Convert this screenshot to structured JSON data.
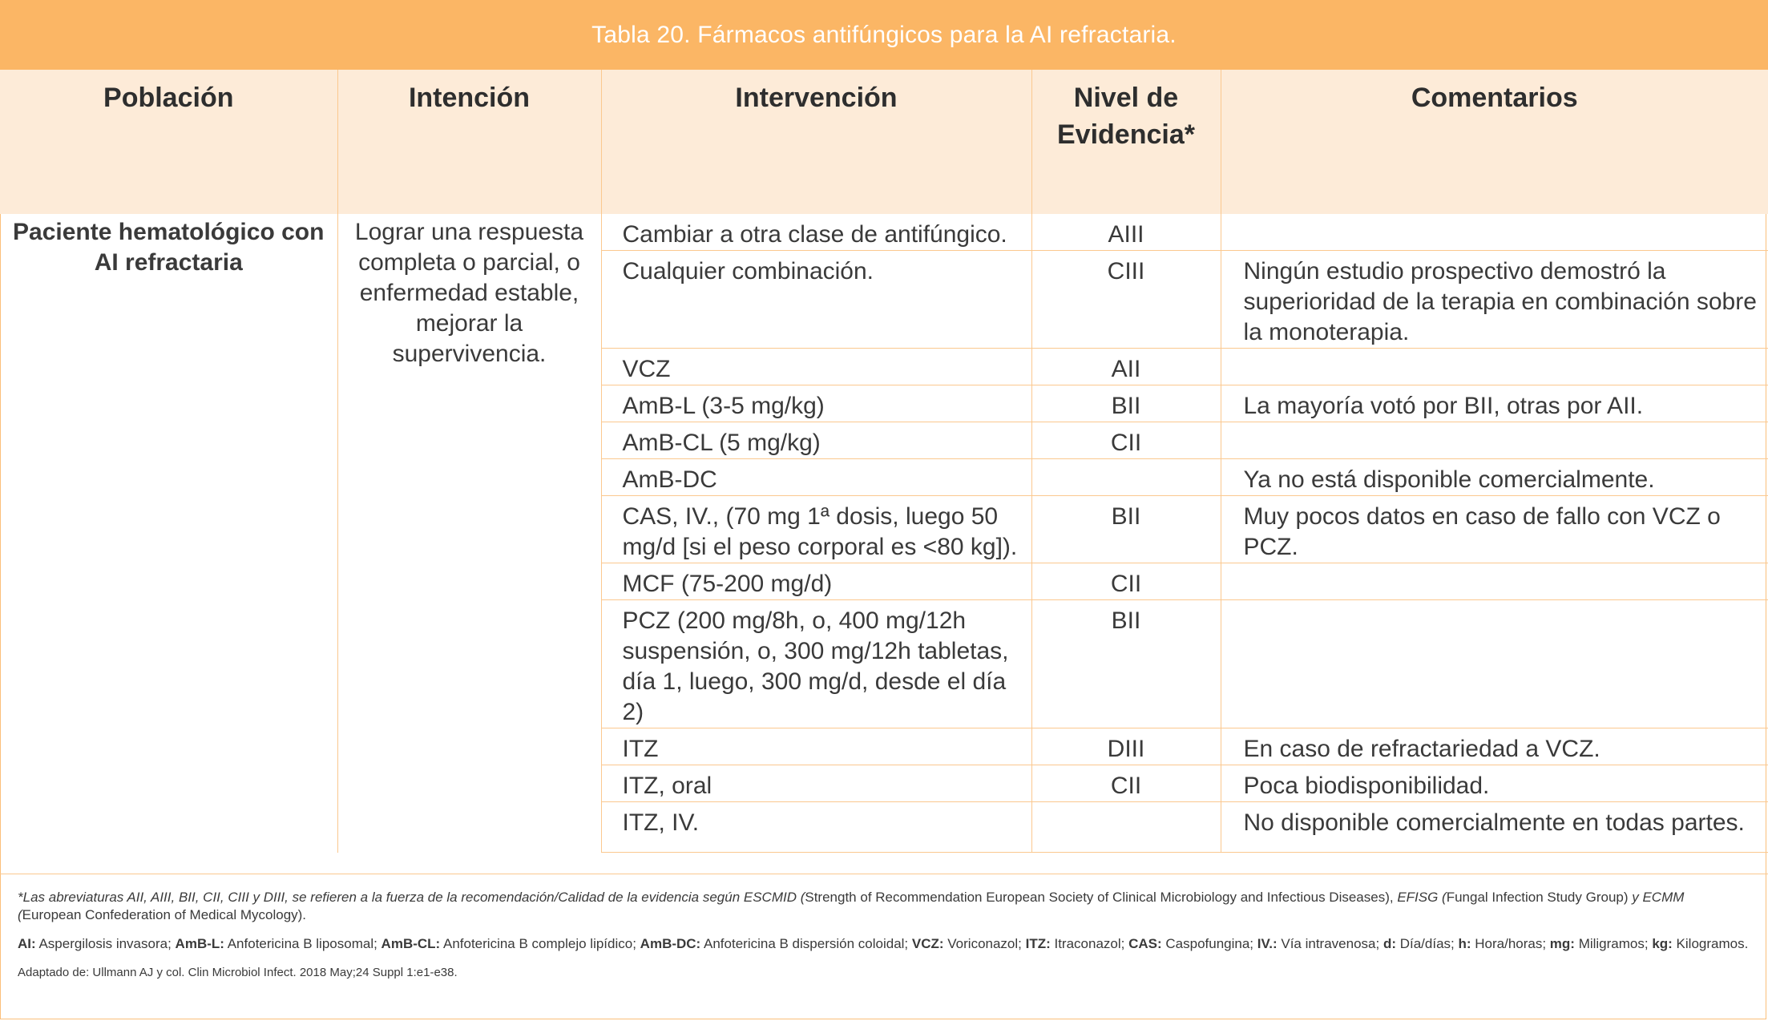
{
  "title": "Tabla 20. Fármacos antifúngicos para la AI refractaria.",
  "headers": {
    "poblacion": "Población",
    "intencion": "Intención",
    "intervencion": "Intervención",
    "nivel_line1": "Nivel de",
    "nivel_line2": "Evidencia*",
    "comentarios": "Comentarios"
  },
  "poblacion": "Paciente hematológico con AI refractaria",
  "intencion": "Lograr una respuesta completa o parcial, o enfermedad estable, mejorar la supervivencia.",
  "rows": [
    {
      "intervencion": "Cambiar a otra clase de antifúngico.",
      "nivel": "AIII",
      "comentario": ""
    },
    {
      "intervencion": "Cualquier combinación.",
      "nivel": "CIII",
      "comentario": "Ningún estudio prospectivo demostró la superioridad de la terapia en combinación sobre la monoterapia."
    },
    {
      "intervencion": "VCZ",
      "nivel": "AII",
      "comentario": ""
    },
    {
      "intervencion": "AmB-L (3-5 mg/kg)",
      "nivel": "BII",
      "comentario": "La mayoría votó por BII, otras por AII."
    },
    {
      "intervencion": "AmB-CL (5 mg/kg)",
      "nivel": "CII",
      "comentario": ""
    },
    {
      "intervencion": "AmB-DC",
      "nivel": "",
      "comentario": "Ya no está disponible comercialmente."
    },
    {
      "intervencion": "CAS, IV., (70 mg 1ª dosis, luego 50 mg/d [si el peso corporal es <80 kg]).",
      "nivel": "BII",
      "comentario": "Muy pocos datos en caso de fallo con VCZ o PCZ."
    },
    {
      "intervencion": "MCF (75-200 mg/d)",
      "nivel": "CII",
      "comentario": ""
    },
    {
      "intervencion": "PCZ (200 mg/8h, o, 400 mg/12h suspensión, o, 300 mg/12h tabletas, día 1, luego, 300 mg/d, desde el día 2)",
      "nivel": "BII",
      "comentario": ""
    },
    {
      "intervencion": "ITZ",
      "nivel": "DIII",
      "comentario": "En caso de refractariedad a VCZ."
    },
    {
      "intervencion": "ITZ, oral",
      "nivel": "CII",
      "comentario": "Poca biodisponibilidad."
    },
    {
      "intervencion": "ITZ, IV.",
      "nivel": "",
      "comentario": "No disponible comercialmente en todas partes."
    }
  ],
  "notes": {
    "note1_italic_a": "*Las abreviaturas AII, AIII, BII, CII, CIII y DIII, se refieren a la fuerza de la recomendación/Calidad de la evidencia según ESCMID (",
    "note1_plain_a": "Strength of Recommendation European Society of Clinical Microbiology and Infectious Diseases),",
    "note1_italic_b": " EFISG (",
    "note1_plain_b": "Fungal Infection Study Group)",
    "note1_italic_c": " y ECMM (",
    "note1_plain_c": "European Confederation of Medical Mycology).",
    "abbreviations": [
      {
        "term": "AI:",
        "def": " Aspergilosis invasora; "
      },
      {
        "term": "AmB-L:",
        "def": " Anfotericina B liposomal; "
      },
      {
        "term": "AmB-CL:",
        "def": " Anfotericina B complejo lipídico; "
      },
      {
        "term": "AmB-DC:",
        "def": " Anfotericina B dispersión coloidal; "
      },
      {
        "term": "VCZ:",
        "def": " Voriconazol; "
      },
      {
        "term": "ITZ:",
        "def": " Itraconazol; "
      },
      {
        "term": "CAS:",
        "def": " Caspofungina; "
      },
      {
        "term": "IV.:",
        "def": " Vía intravenosa; "
      },
      {
        "term": "d:",
        "def": " Día/días; "
      },
      {
        "term": "h:",
        "def": " Hora/horas; "
      },
      {
        "term": "mg:",
        "def": " Miligramos; "
      },
      {
        "term": "kg:",
        "def": " Kilogramos."
      }
    ],
    "source": "Adaptado de: Ullmann AJ y col. Clin Microbiol Infect. 2018 May;24 Suppl 1:e1-e38."
  }
}
